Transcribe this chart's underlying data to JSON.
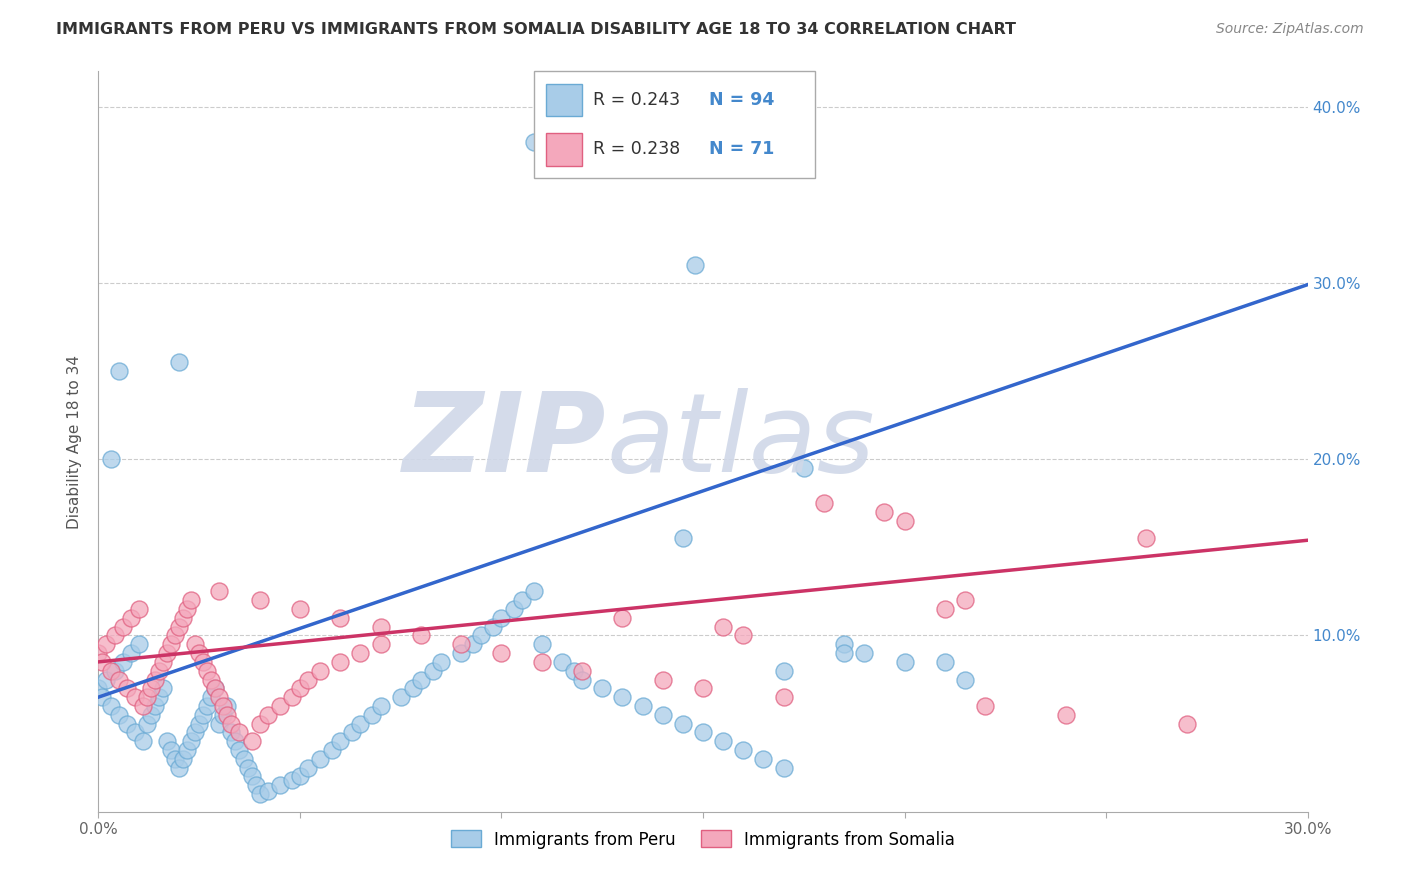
{
  "title": "IMMIGRANTS FROM PERU VS IMMIGRANTS FROM SOMALIA DISABILITY AGE 18 TO 34 CORRELATION CHART",
  "source": "Source: ZipAtlas.com",
  "ylabel": "Disability Age 18 to 34",
  "xlim": [
    0.0,
    0.3
  ],
  "ylim": [
    0.0,
    0.42
  ],
  "xticks": [
    0.0,
    0.05,
    0.1,
    0.15,
    0.2,
    0.25,
    0.3
  ],
  "xtick_labels": [
    "0.0%",
    "",
    "",
    "",
    "",
    "",
    "30.0%"
  ],
  "yticks": [
    0.0,
    0.1,
    0.2,
    0.3,
    0.4
  ],
  "ytick_labels_right": [
    "",
    "10.0%",
    "20.0%",
    "30.0%",
    "40.0%"
  ],
  "peru_color": "#a8cce8",
  "peru_edge_color": "#6aaad4",
  "somalia_color": "#f4a8bc",
  "somalia_edge_color": "#e06080",
  "peru_R": 0.243,
  "peru_N": 94,
  "somalia_R": 0.238,
  "somalia_N": 71,
  "peru_line_color": "#3366cc",
  "somalia_line_color": "#cc3366",
  "watermark_zip": "ZIP",
  "watermark_atlas": "atlas",
  "legend_label_peru": "Immigrants from Peru",
  "legend_label_somalia": "Immigrants from Somalia",
  "background_color": "#ffffff",
  "grid_color": "#cccccc",
  "title_color": "#333333",
  "source_color": "#888888",
  "ylabel_color": "#555555",
  "tick_label_color_right": "#4488cc"
}
